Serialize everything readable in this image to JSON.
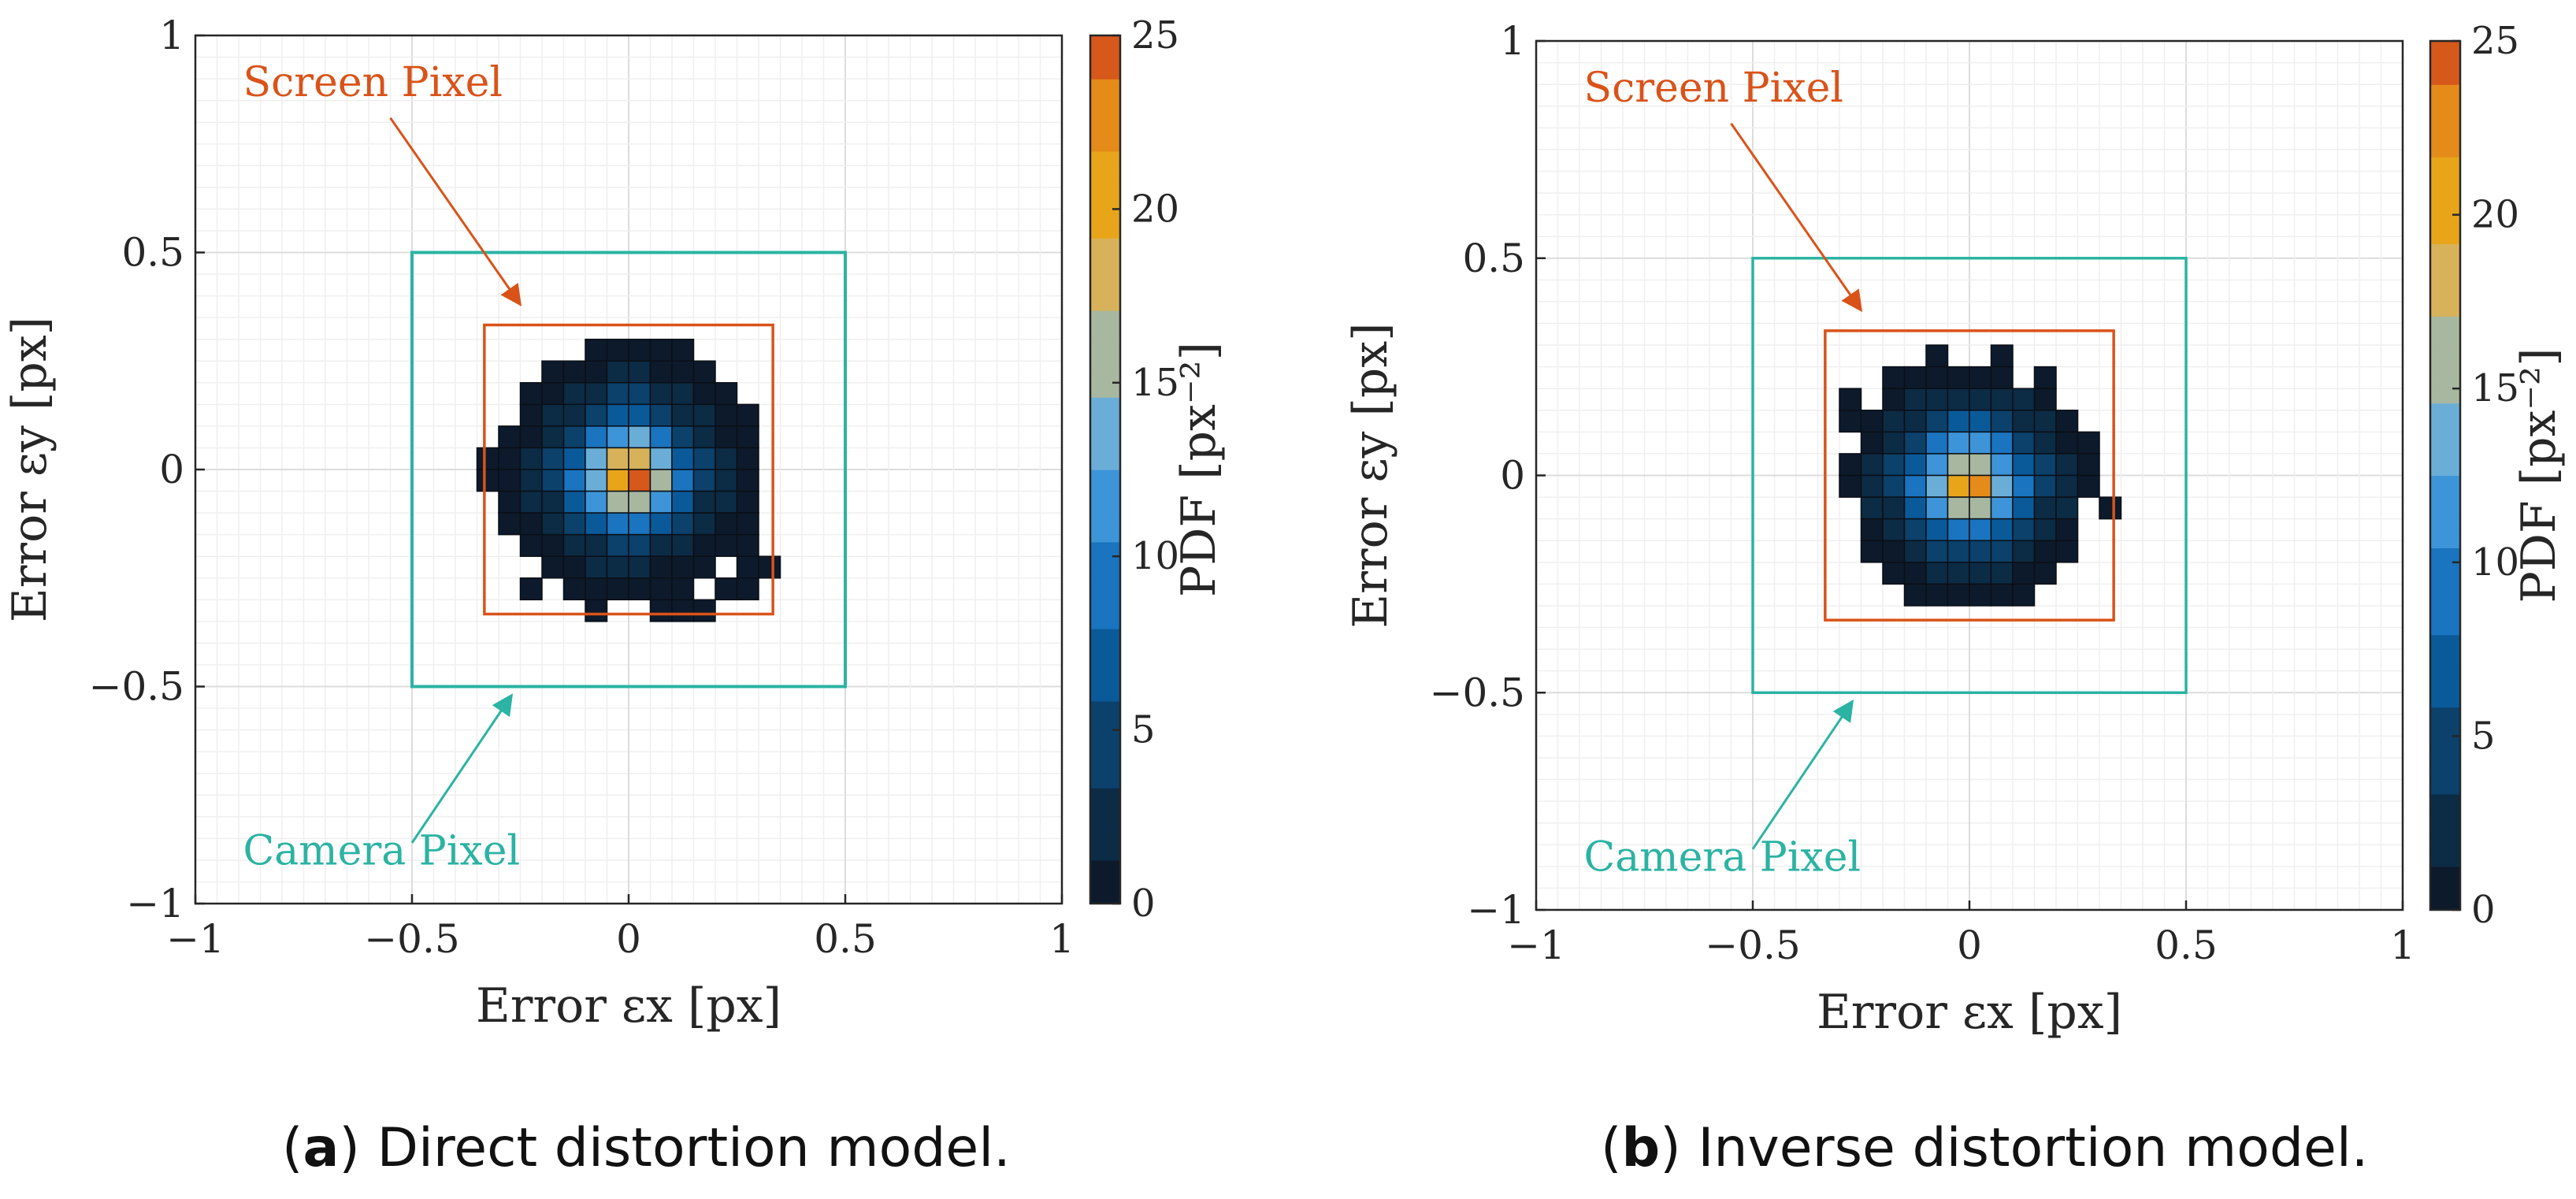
{
  "colors": {
    "screen_pixel": "#d95319",
    "camera_pixel": "#2bb3a3",
    "axis": "#262626",
    "grid": "#e6e6e6",
    "colormap": [
      "#0d1a2b",
      "#0c2b45",
      "#0b416b",
      "#0a5a9a",
      "#1a74bf",
      "#3d94d8",
      "#6aaed8",
      "#a8b7a0",
      "#d7b25a",
      "#e8a51a",
      "#e48b1a",
      "#d6581b"
    ]
  },
  "captions": [
    {
      "label": "a",
      "text": "Direct distortion model."
    },
    {
      "label": "b",
      "text": "Inverse distortion model."
    }
  ],
  "chart_data": [
    {
      "type": "heatmap",
      "title": "",
      "xlabel": "Error εx [px]",
      "ylabel": "Error εy [px]",
      "xlim": [
        -1,
        1
      ],
      "ylim": [
        -1,
        1
      ],
      "xticks": [
        "−1",
        "−0.5",
        "0",
        "0.5",
        "1"
      ],
      "yticks": [
        "−1",
        "−0.5",
        "0",
        "0.5",
        "1"
      ],
      "bin_width": 0.05,
      "bin_start": -0.35,
      "grid": true,
      "colorbar": {
        "label": "PDF [px⁻²]",
        "min": 0,
        "max": 25,
        "ticks": [
          "0",
          "5",
          "10",
          "15",
          "20",
          "25"
        ]
      },
      "annotations": [
        {
          "text": "Screen Pixel",
          "color": "screen_pixel"
        },
        {
          "text": "Camera Pixel",
          "color": "camera_pixel"
        }
      ],
      "rectangles": [
        {
          "name": "camera-pixel-box",
          "x": [
            -0.5,
            0.5
          ],
          "y": [
            -0.5,
            0.5
          ],
          "color": "camera_pixel"
        },
        {
          "name": "screen-pixel-box",
          "x": [
            -0.333,
            0.333
          ],
          "y": [
            -0.333,
            0.333
          ],
          "color": "screen_pixel"
        }
      ],
      "grid_values": [
        [
          0,
          0,
          0,
          0,
          0,
          0,
          0,
          0,
          0,
          0,
          0,
          0,
          0,
          0
        ],
        [
          0,
          0,
          0,
          0,
          0,
          1,
          1,
          1,
          1,
          1,
          0,
          0,
          0,
          0
        ],
        [
          0,
          0,
          0,
          1,
          1,
          1,
          2,
          2,
          1,
          1,
          1,
          0,
          0,
          0
        ],
        [
          0,
          0,
          1,
          1,
          2,
          3,
          4,
          4,
          3,
          2,
          1,
          1,
          0,
          0
        ],
        [
          0,
          0,
          1,
          2,
          3,
          5,
          7,
          7,
          5,
          3,
          2,
          1,
          1,
          0
        ],
        [
          0,
          1,
          1,
          3,
          5,
          8,
          12,
          13,
          9,
          5,
          3,
          1,
          1,
          0
        ],
        [
          1,
          1,
          2,
          4,
          7,
          13,
          18,
          19,
          14,
          7,
          4,
          2,
          1,
          0
        ],
        [
          1,
          1,
          2,
          4,
          8,
          14,
          20,
          24,
          15,
          8,
          4,
          2,
          1,
          0
        ],
        [
          0,
          1,
          2,
          3,
          6,
          11,
          15,
          16,
          12,
          6,
          3,
          2,
          1,
          0
        ],
        [
          0,
          1,
          1,
          2,
          4,
          6,
          8,
          8,
          6,
          4,
          2,
          1,
          1,
          0
        ],
        [
          0,
          0,
          1,
          1,
          2,
          3,
          4,
          4,
          3,
          2,
          1,
          1,
          1,
          0
        ],
        [
          0,
          0,
          0,
          1,
          1,
          2,
          2,
          2,
          1,
          1,
          1,
          0,
          1,
          1
        ],
        [
          0,
          0,
          1,
          0,
          1,
          1,
          1,
          1,
          1,
          1,
          0,
          1,
          1,
          0
        ],
        [
          0,
          0,
          0,
          0,
          0,
          1,
          0,
          0,
          1,
          1,
          1,
          0,
          0,
          0
        ]
      ]
    },
    {
      "type": "heatmap",
      "title": "",
      "xlabel": "Error εx [px]",
      "ylabel": "Error εy [px]",
      "xlim": [
        -1,
        1
      ],
      "ylim": [
        -1,
        1
      ],
      "xticks": [
        "−1",
        "−0.5",
        "0",
        "0.5",
        "1"
      ],
      "yticks": [
        "−1",
        "−0.5",
        "0",
        "0.5",
        "1"
      ],
      "bin_width": 0.05,
      "bin_start": -0.35,
      "grid": true,
      "colorbar": {
        "label": "PDF [px⁻²]",
        "min": 0,
        "max": 25,
        "ticks": [
          "0",
          "5",
          "10",
          "15",
          "20",
          "25"
        ]
      },
      "annotations": [
        {
          "text": "Screen Pixel",
          "color": "screen_pixel"
        },
        {
          "text": "Camera Pixel",
          "color": "camera_pixel"
        }
      ],
      "rectangles": [
        {
          "name": "camera-pixel-box",
          "x": [
            -0.5,
            0.5
          ],
          "y": [
            -0.5,
            0.5
          ],
          "color": "camera_pixel"
        },
        {
          "name": "screen-pixel-box",
          "x": [
            -0.333,
            0.333
          ],
          "y": [
            -0.333,
            0.333
          ],
          "color": "screen_pixel"
        }
      ],
      "grid_values": [
        [
          0,
          0,
          0,
          0,
          0,
          0,
          0,
          0,
          0,
          0,
          0,
          0,
          0,
          0
        ],
        [
          0,
          0,
          0,
          0,
          0,
          1,
          0,
          0,
          1,
          0,
          0,
          0,
          0,
          0
        ],
        [
          0,
          0,
          0,
          1,
          1,
          1,
          1,
          1,
          1,
          0,
          1,
          0,
          0,
          0
        ],
        [
          0,
          1,
          0,
          1,
          2,
          3,
          3,
          3,
          3,
          2,
          1,
          0,
          0,
          0
        ],
        [
          0,
          1,
          1,
          2,
          3,
          5,
          6,
          6,
          5,
          3,
          2,
          1,
          0,
          0
        ],
        [
          0,
          0,
          1,
          3,
          5,
          8,
          11,
          11,
          8,
          5,
          3,
          1,
          1,
          0
        ],
        [
          0,
          1,
          2,
          4,
          7,
          12,
          17,
          17,
          12,
          7,
          4,
          2,
          1,
          0
        ],
        [
          0,
          1,
          2,
          4,
          8,
          14,
          21,
          22,
          14,
          8,
          4,
          2,
          1,
          0
        ],
        [
          0,
          0,
          2,
          3,
          7,
          11,
          15,
          15,
          11,
          7,
          3,
          2,
          0,
          1
        ],
        [
          0,
          0,
          1,
          2,
          4,
          7,
          9,
          9,
          7,
          4,
          2,
          1,
          0,
          0
        ],
        [
          0,
          0,
          1,
          1,
          3,
          4,
          5,
          5,
          4,
          3,
          1,
          1,
          0,
          0
        ],
        [
          0,
          0,
          0,
          1,
          1,
          2,
          2,
          2,
          2,
          1,
          1,
          0,
          0,
          0
        ],
        [
          0,
          0,
          0,
          0,
          1,
          1,
          1,
          1,
          1,
          1,
          0,
          0,
          0,
          0
        ],
        [
          0,
          0,
          0,
          0,
          0,
          0,
          0,
          0,
          0,
          0,
          0,
          0,
          0,
          0
        ]
      ]
    }
  ]
}
